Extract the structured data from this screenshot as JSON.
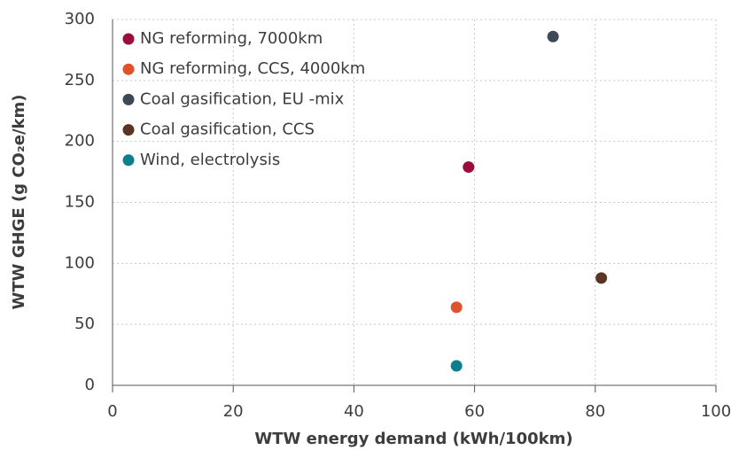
{
  "chart_data": {
    "type": "scatter",
    "x_label": "WTW energy demand (kWh/100km)",
    "y_label": "WTW GHGE (g CO₂e/km)",
    "xlim": [
      0,
      100
    ],
    "xticks": [
      0,
      20,
      40,
      60,
      80,
      100
    ],
    "ylim": [
      0,
      300
    ],
    "yticks": [
      0,
      50,
      100,
      150,
      200,
      250,
      300
    ],
    "grid": true,
    "legend": "upper left",
    "series": [
      {
        "name": "NG reforming, 7000km",
        "color": "#9b0d3a",
        "x": [
          59
        ],
        "values": [
          179
        ]
      },
      {
        "name": "NG reforming, CCS, 4000km",
        "color": "#e0522b",
        "x": [
          57
        ],
        "values": [
          64
        ]
      },
      {
        "name": "Coal gasification, EU -mix",
        "color": "#3d4a55",
        "x": [
          73
        ],
        "values": [
          286
        ]
      },
      {
        "name": "Coal gasification, CCS",
        "color": "#5a3424",
        "x": [
          81
        ],
        "values": [
          88
        ]
      },
      {
        "name": "Wind, electrolysis",
        "color": "#0b7f8c",
        "x": [
          57
        ],
        "values": [
          16
        ]
      }
    ]
  }
}
